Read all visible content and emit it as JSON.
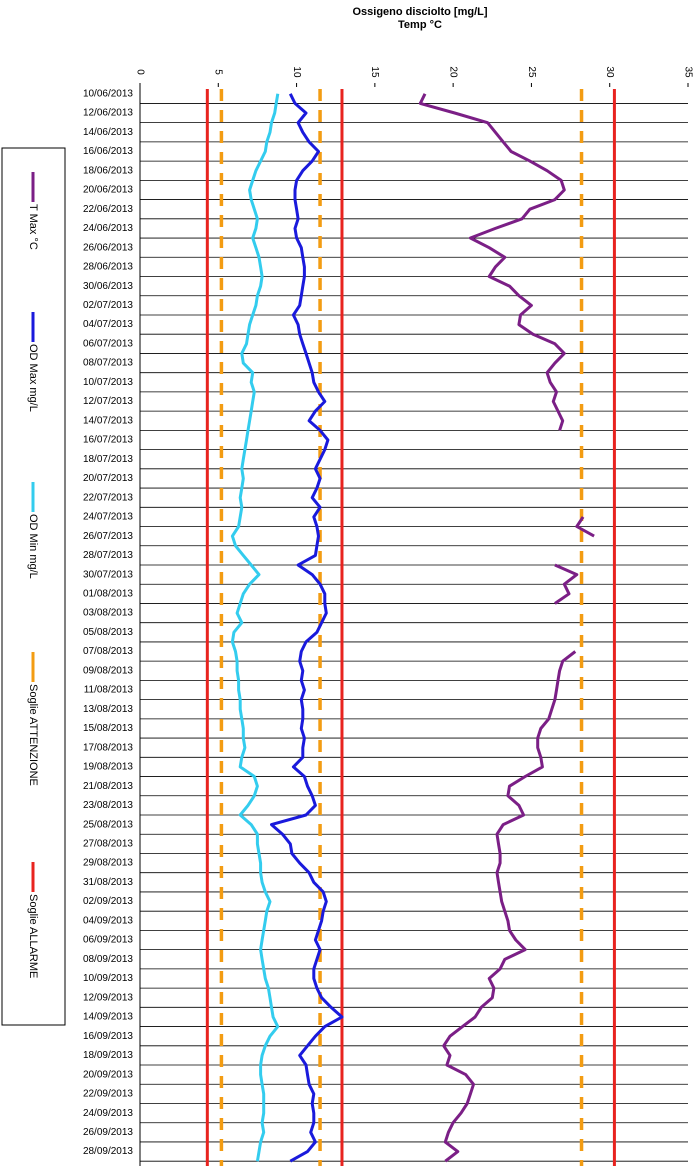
{
  "chart_data": {
    "type": "line",
    "orientation": "horizontal",
    "title": "Ossigeno disciolto [mg/L]",
    "subtitle": "Temp °C",
    "categories": [
      "10/06/2013",
      null,
      "12/06/2013",
      null,
      "14/06/2013",
      null,
      "16/06/2013",
      null,
      "18/06/2013",
      null,
      "20/06/2013",
      null,
      "22/06/2013",
      null,
      "24/06/2013",
      null,
      "26/06/2013",
      null,
      "28/06/2013",
      null,
      "30/06/2013",
      null,
      "02/07/2013",
      null,
      "04/07/2013",
      null,
      "06/07/2013",
      null,
      "08/07/2013",
      null,
      "10/07/2013",
      null,
      "12/07/2013",
      null,
      "14/07/2013",
      null,
      "16/07/2013",
      null,
      "18/07/2013",
      null,
      "20/07/2013",
      null,
      "22/07/2013",
      null,
      "24/07/2013",
      null,
      "26/07/2013",
      null,
      "28/07/2013",
      null,
      "30/07/2013",
      null,
      "01/08/2013",
      null,
      "03/08/2013",
      null,
      "05/08/2013",
      null,
      "07/08/2013",
      null,
      "09/08/2013",
      null,
      "11/08/2013",
      null,
      "13/08/2013",
      null,
      "15/08/2013",
      null,
      "17/08/2013",
      null,
      "19/08/2013",
      null,
      "21/08/2013",
      null,
      "23/08/2013",
      null,
      "25/08/2013",
      null,
      "27/08/2013",
      null,
      "29/08/2013",
      null,
      "31/08/2013",
      null,
      "02/09/2013",
      null,
      "04/09/2013",
      null,
      "06/09/2013",
      null,
      "08/09/2013",
      null,
      "10/09/2013",
      null,
      "12/09/2013",
      null,
      "14/09/2013",
      null,
      "16/09/2013",
      null,
      "18/09/2013",
      null,
      "20/09/2013",
      null,
      "22/09/2013",
      null,
      "24/09/2013",
      null,
      "26/09/2013",
      null,
      "28/09/2013",
      null
    ],
    "series": [
      {
        "name": "T Max °C",
        "color": "#7b1f86",
        "values": [
          18.2,
          17.9,
          20.1,
          22.2,
          22.7,
          23.2,
          23.7,
          24.9,
          26.0,
          26.9,
          27.1,
          26.5,
          24.9,
          24.4,
          22.7,
          21.1,
          22.3,
          23.3,
          22.7,
          22.3,
          23.6,
          24.2,
          25.0,
          24.3,
          24.2,
          25.1,
          26.5,
          27.1,
          26.5,
          26.0,
          26.2,
          26.6,
          26.4,
          26.7,
          27.0,
          26.8,
          null,
          null,
          null,
          null,
          null,
          null,
          null,
          null,
          28.3,
          27.9,
          29.0,
          null,
          null,
          26.5,
          27.9,
          27.1,
          27.4,
          26.5,
          null,
          null,
          null,
          null,
          27.8,
          27.0,
          26.8,
          26.7,
          26.6,
          26.5,
          26.3,
          26.1,
          25.6,
          25.4,
          25.4,
          25.6,
          25.7,
          24.6,
          23.6,
          23.5,
          24.2,
          24.5,
          23.2,
          22.8,
          22.9,
          23.0,
          23.0,
          22.8,
          22.9,
          23.0,
          23.1,
          23.3,
          23.5,
          23.6,
          24.0,
          24.6,
          23.3,
          23.0,
          22.3,
          22.6,
          22.5,
          21.8,
          21.4,
          20.6,
          19.8,
          19.4,
          19.8,
          19.6,
          20.8,
          21.3,
          21.1,
          20.9,
          20.5,
          20.0,
          19.7,
          19.5,
          20.3,
          19.5
        ]
      },
      {
        "name": "OD Max mg/L",
        "color": "#1a1adc",
        "values": [
          9.6,
          9.9,
          10.6,
          10.1,
          10.4,
          10.8,
          11.4,
          11.0,
          10.4,
          10.0,
          9.9,
          9.9,
          10.0,
          10.1,
          9.9,
          10.0,
          10.3,
          10.4,
          10.5,
          10.5,
          10.4,
          10.3,
          10.2,
          9.8,
          10.1,
          10.2,
          10.4,
          10.6,
          10.8,
          11.0,
          11.1,
          11.4,
          11.8,
          11.2,
          10.8,
          11.5,
          12.0,
          11.8,
          11.5,
          11.2,
          11.5,
          11.3,
          11.0,
          11.5,
          11.1,
          11.3,
          11.4,
          11.3,
          11.2,
          10.1,
          11.0,
          11.5,
          11.8,
          11.8,
          11.9,
          11.6,
          11.3,
          10.6,
          10.3,
          10.2,
          10.4,
          10.3,
          10.5,
          10.3,
          10.4,
          10.4,
          10.3,
          10.5,
          10.4,
          10.4,
          9.8,
          10.5,
          10.7,
          11.0,
          11.2,
          10.6,
          8.4,
          9.1,
          9.6,
          9.7,
          10.2,
          10.8,
          11.1,
          11.7,
          11.9,
          11.7,
          11.6,
          11.4,
          11.2,
          11.5,
          11.3,
          11.1,
          11.1,
          11.3,
          11.6,
          12.2,
          12.9,
          11.8,
          11.2,
          10.7,
          10.2,
          10.6,
          10.7,
          10.8,
          11.1,
          11.0,
          11.1,
          11.1,
          10.9,
          11.2,
          10.7,
          9.6
        ]
      },
      {
        "name": "OD Min mg/L",
        "color": "#33ccee",
        "values": [
          8.8,
          8.7,
          8.6,
          8.4,
          8.3,
          8.1,
          8.0,
          7.7,
          7.4,
          7.2,
          7.0,
          7.1,
          7.3,
          7.5,
          7.4,
          7.2,
          7.4,
          7.6,
          7.7,
          7.8,
          7.7,
          7.5,
          7.4,
          7.2,
          7.0,
          6.9,
          6.8,
          6.5,
          6.6,
          7.2,
          7.1,
          7.3,
          7.2,
          7.1,
          7.0,
          6.9,
          6.8,
          6.7,
          6.6,
          6.5,
          6.6,
          6.5,
          6.4,
          6.5,
          6.4,
          6.3,
          5.9,
          6.1,
          6.6,
          7.1,
          7.6,
          7.0,
          6.6,
          6.4,
          6.2,
          6.5,
          6.0,
          5.9,
          6.1,
          6.2,
          6.2,
          6.3,
          6.3,
          6.4,
          6.4,
          6.5,
          6.6,
          6.6,
          6.7,
          6.5,
          6.4,
          7.3,
          7.5,
          7.3,
          6.9,
          6.4,
          7.1,
          7.5,
          7.5,
          7.6,
          7.7,
          7.7,
          7.8,
          8.0,
          8.3,
          8.1,
          8.0,
          7.9,
          7.8,
          7.7,
          7.8,
          7.9,
          8.0,
          8.2,
          8.3,
          8.4,
          8.5,
          8.8,
          8.3,
          8.0,
          7.8,
          7.7,
          7.7,
          7.8,
          7.9,
          7.9,
          7.9,
          7.8,
          7.9,
          7.7,
          7.6,
          7.5
        ]
      }
    ],
    "thresholds": [
      {
        "name": "Soglie ATTENZIONE",
        "color": "#f39c12",
        "dashed": true,
        "values": [
          5.2,
          11.5,
          28.2
        ]
      },
      {
        "name": "Soglie ALLARME",
        "color": "#e8231f",
        "dashed": false,
        "values": [
          4.3,
          12.9,
          30.3
        ]
      }
    ],
    "xlim": [
      0,
      35
    ],
    "xticks": [
      0,
      5,
      10,
      15,
      20,
      25,
      30,
      35
    ],
    "grid": true,
    "legend": "left"
  }
}
